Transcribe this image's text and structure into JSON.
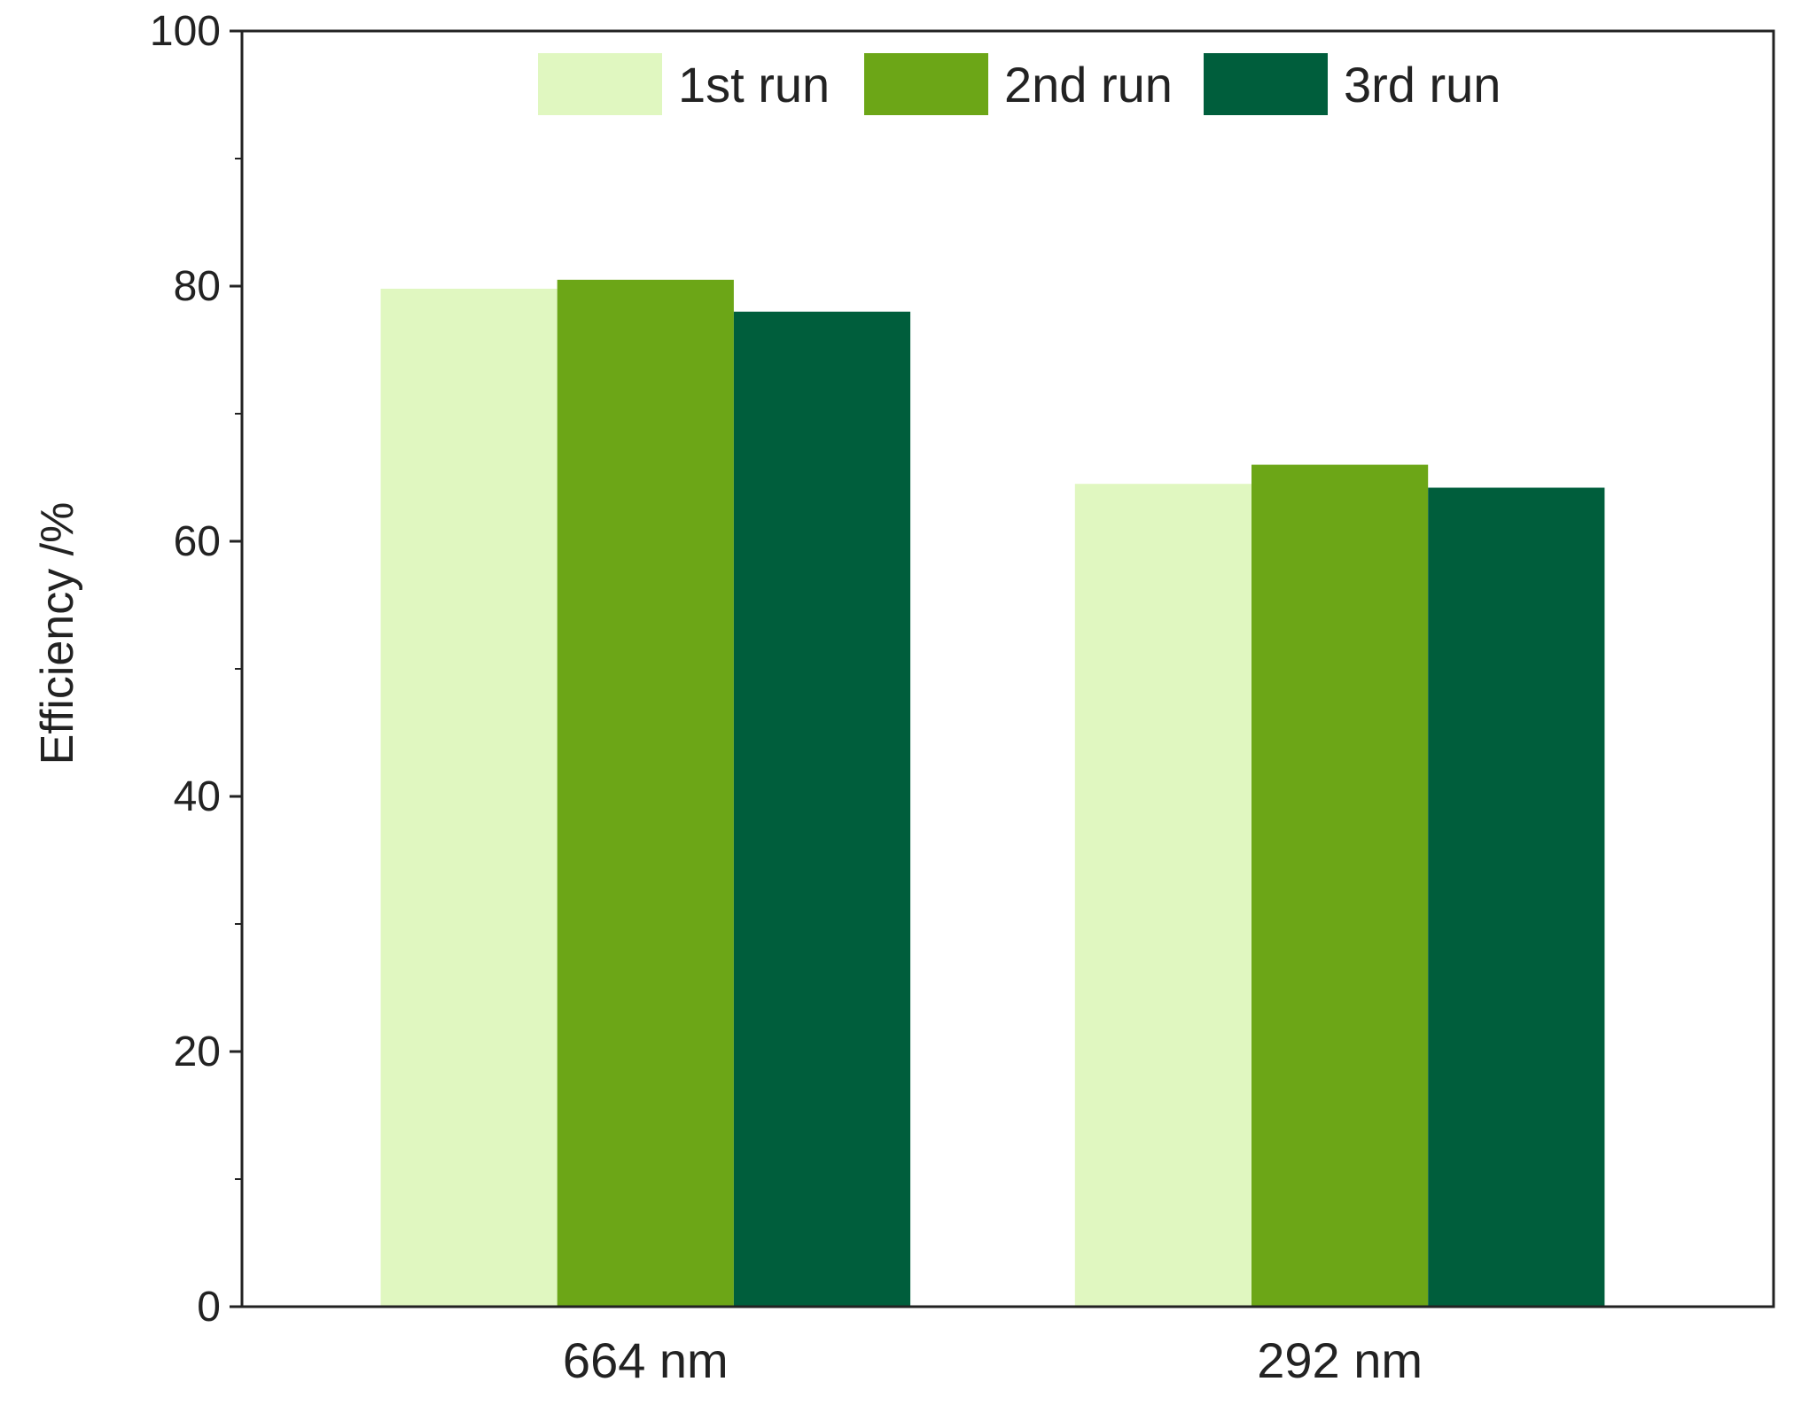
{
  "chart_data": {
    "type": "bar",
    "title": "",
    "xlabel": "",
    "ylabel": "Efficiency /%",
    "categories": [
      "664 nm",
      "292 nm"
    ],
    "series": [
      {
        "name": "1st run",
        "color": "#e0f7c0",
        "values": [
          79.8,
          64.5
        ]
      },
      {
        "name": "2nd run",
        "color": "#6ca617",
        "values": [
          80.5,
          66.0
        ]
      },
      {
        "name": "3rd run",
        "color": "#005e3c",
        "values": [
          78.0,
          64.2
        ]
      }
    ],
    "ylim": [
      0,
      100
    ],
    "yticks": [
      0,
      20,
      40,
      60,
      80,
      100
    ],
    "grid": false,
    "legend_position": "top"
  }
}
